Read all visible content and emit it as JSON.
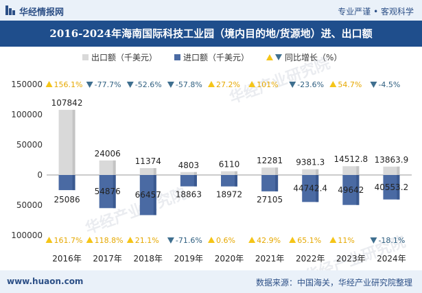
{
  "header": {
    "brand": "华经情报网",
    "slogan": "专业严谨 • 客观科学"
  },
  "title": "2016-2024年海南国际科技工业园（境内目的地/货源地）进、出口额",
  "legend": {
    "export_label": "出口额（千美元）",
    "import_label": "进口额（千美元）",
    "growth_label": "同比增长（%）"
  },
  "footer": {
    "website": "www.huaon.com",
    "source": "数据来源：中国海关，华经产业研究院整理"
  },
  "watermark": "华经产业研究院",
  "colors": {
    "export_bar": "#d9d9d9",
    "import_bar": "#4a6aa3",
    "up_triangle": "#f5c518",
    "down_triangle": "#3f6f8f",
    "title_bg": "#1f4e8c",
    "brand": "#2c4f86"
  },
  "chart_data": {
    "type": "bar",
    "categories": [
      "2016年",
      "2017年",
      "2018年",
      "2019年",
      "2020年",
      "2021年",
      "2022年",
      "2023年",
      "2024年"
    ],
    "series": [
      {
        "name": "出口额（千美元）",
        "values": [
          107842,
          24006,
          11374,
          4803,
          6110,
          12281,
          9381.3,
          14512.8,
          13863.9
        ],
        "labels": [
          "107842",
          "24006",
          "11374",
          "4803",
          "6110",
          "12281",
          "9381.3",
          "14512.8",
          "13863.9"
        ],
        "growth": [
          "156.1%",
          "-77.7%",
          "-52.6%",
          "-57.8%",
          "27.2%",
          "101%",
          "-23.6%",
          "54.7%",
          "-4.5%"
        ],
        "growth_dir": [
          "up",
          "down",
          "down",
          "down",
          "up",
          "up",
          "down",
          "up",
          "down"
        ]
      },
      {
        "name": "进口额（千美元）",
        "values": [
          -25086,
          -54876,
          -66457,
          -18863,
          -18972,
          -27105,
          -44742.4,
          -49642,
          -40553.2
        ],
        "labels": [
          "25086",
          "54876",
          "66457",
          "18863",
          "18972",
          "27105",
          "44742.4",
          "49642",
          "40553.2"
        ],
        "growth": [
          "161.7%",
          "118.8%",
          "21.1%",
          "-71.6%",
          "0.6%",
          "42.9%",
          "65.1%",
          "11%",
          "-18.1%"
        ],
        "growth_dir": [
          "up",
          "up",
          "up",
          "down",
          "up",
          "up",
          "up",
          "up",
          "down"
        ]
      }
    ],
    "yticks": [
      {
        "value": 150000,
        "label": "150000"
      },
      {
        "value": 100000,
        "label": "100000"
      },
      {
        "value": 50000,
        "label": "50000"
      },
      {
        "value": 0,
        "label": "0"
      },
      {
        "value": -50000,
        "label": "50000"
      },
      {
        "value": -100000,
        "label": "100000"
      }
    ],
    "ylim": [
      -100000,
      150000
    ],
    "grid": false,
    "legend_position": "top"
  }
}
